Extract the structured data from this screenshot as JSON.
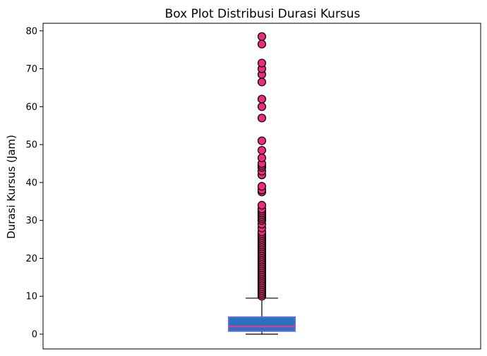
{
  "chart_data": {
    "type": "box",
    "title": "Box Plot Distribusi Durasi Kursus",
    "xlabel": "",
    "ylabel": "Durasi Kursus (Jam)",
    "ylim": [
      -3.9,
      82
    ],
    "yticks": [
      0,
      10,
      20,
      30,
      40,
      50,
      60,
      70,
      80
    ],
    "grid": false,
    "box": {
      "whisker_low": 0,
      "q1": 0.8,
      "median": 2,
      "q3": 4.5,
      "whisker_high": 9.5
    },
    "outliers": [
      10,
      10.5,
      11,
      11.5,
      12,
      12.5,
      13,
      13.5,
      14,
      14.5,
      15,
      15.5,
      16,
      16.5,
      17,
      17.5,
      18,
      18.5,
      19,
      19.5,
      20,
      20.5,
      21,
      21.5,
      22,
      22.5,
      23,
      23.5,
      24,
      24.5,
      25,
      25.5,
      26,
      26.5,
      27,
      28,
      29,
      30,
      30.5,
      31,
      31.5,
      32,
      32.5,
      33,
      34,
      37.5,
      38,
      39,
      42,
      43,
      44,
      44.5,
      45,
      46.5,
      48.5,
      51,
      57,
      60,
      62,
      66.5,
      68.5,
      70,
      71.5,
      76.5,
      78.5
    ],
    "colors": {
      "box_fill": "#2a72c0",
      "box_edge": "#5d6ee0",
      "median": "#ff2e88",
      "outlier_fill": "#ee2a7b",
      "outlier_edge": "#000000",
      "whisker": "#000000"
    }
  }
}
